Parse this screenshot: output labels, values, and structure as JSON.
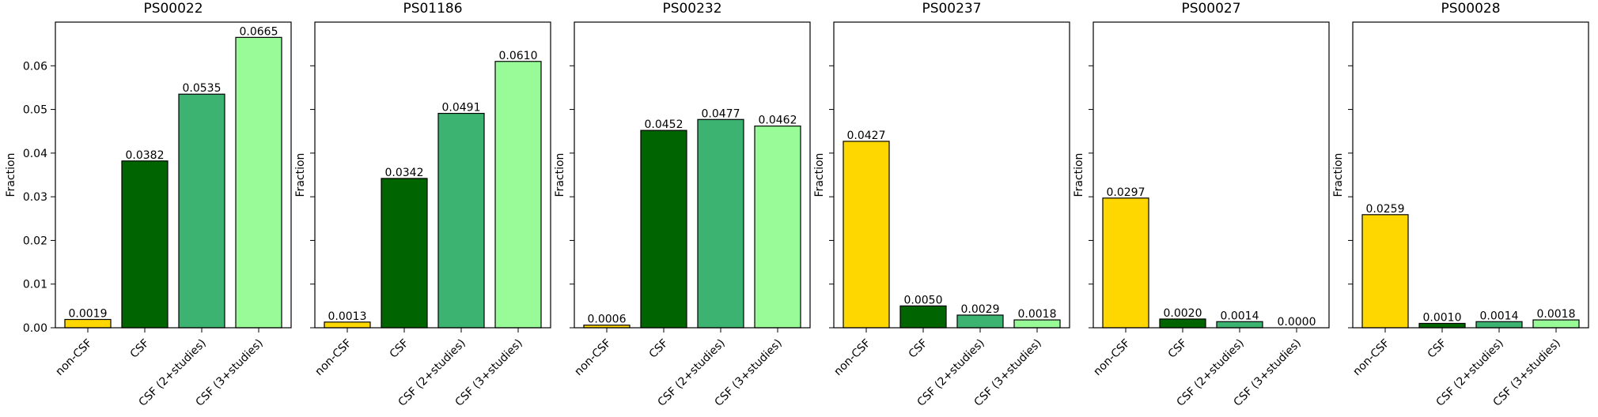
{
  "chart_data": [
    {
      "type": "bar",
      "title": "PS00022",
      "ylabel": "Fraction",
      "categories": [
        "non-CSF",
        "CSF",
        "CSF (2+studies)",
        "CSF (3+studies)"
      ],
      "values": [
        0.0019,
        0.0382,
        0.0535,
        0.0665
      ],
      "value_labels": [
        "0.0019",
        "0.0382",
        "0.0535",
        "0.0665"
      ],
      "ylim": [
        0,
        0.07
      ],
      "yticks": [
        0,
        0.01,
        0.02,
        0.03,
        0.04,
        0.05,
        0.06
      ],
      "ytick_labels": [
        "0.00",
        "0.01",
        "0.02",
        "0.03",
        "0.04",
        "0.05",
        "0.06"
      ]
    },
    {
      "type": "bar",
      "title": "PS01186",
      "ylabel": "Fraction",
      "categories": [
        "non-CSF",
        "CSF",
        "CSF (2+studies)",
        "CSF (3+studies)"
      ],
      "values": [
        0.0013,
        0.0342,
        0.0491,
        0.061
      ],
      "value_labels": [
        "0.0013",
        "0.0342",
        "0.0491",
        "0.0610"
      ],
      "ylim": [
        0,
        0.07
      ],
      "yticks": [
        0,
        0.01,
        0.02,
        0.03,
        0.04,
        0.05,
        0.06
      ],
      "ytick_labels": []
    },
    {
      "type": "bar",
      "title": "PS00232",
      "ylabel": "Fraction",
      "categories": [
        "non-CSF",
        "CSF",
        "CSF (2+studies)",
        "CSF (3+studies)"
      ],
      "values": [
        0.0006,
        0.0452,
        0.0477,
        0.0462
      ],
      "value_labels": [
        "0.0006",
        "0.0452",
        "0.0477",
        "0.0462"
      ],
      "ylim": [
        0,
        0.07
      ],
      "yticks": [
        0,
        0.01,
        0.02,
        0.03,
        0.04,
        0.05,
        0.06
      ],
      "ytick_labels": []
    },
    {
      "type": "bar",
      "title": "PS00237",
      "ylabel": "Fraction",
      "categories": [
        "non-CSF",
        "CSF",
        "CSF (2+studies)",
        "CSF (3+studies)"
      ],
      "values": [
        0.0427,
        0.005,
        0.0029,
        0.0018
      ],
      "value_labels": [
        "0.0427",
        "0.0050",
        "0.0029",
        "0.0018"
      ],
      "ylim": [
        0,
        0.07
      ],
      "yticks": [
        0,
        0.01,
        0.02,
        0.03,
        0.04,
        0.05,
        0.06
      ],
      "ytick_labels": []
    },
    {
      "type": "bar",
      "title": "PS00027",
      "ylabel": "Fraction",
      "categories": [
        "non-CSF",
        "CSF",
        "CSF (2+studies)",
        "CSF (3+studies)"
      ],
      "values": [
        0.0297,
        0.002,
        0.0014,
        0.0
      ],
      "value_labels": [
        "0.0297",
        "0.0020",
        "0.0014",
        "0.0000"
      ],
      "ylim": [
        0,
        0.07
      ],
      "yticks": [
        0,
        0.01,
        0.02,
        0.03,
        0.04,
        0.05,
        0.06
      ],
      "ytick_labels": []
    },
    {
      "type": "bar",
      "title": "PS00028",
      "ylabel": "Fraction",
      "categories": [
        "non-CSF",
        "CSF",
        "CSF (2+studies)",
        "CSF (3+studies)"
      ],
      "values": [
        0.0259,
        0.001,
        0.0014,
        0.0018
      ],
      "value_labels": [
        "0.0259",
        "0.0010",
        "0.0014",
        "0.0018"
      ],
      "ylim": [
        0,
        0.07
      ],
      "yticks": [
        0,
        0.01,
        0.02,
        0.03,
        0.04,
        0.05,
        0.06
      ],
      "ytick_labels": []
    }
  ],
  "colors": {
    "non-CSF": "#ffd700",
    "CSF": "#006400",
    "CSF (2+studies)": "#3cb371",
    "CSF (3+studies)": "#98fb98",
    "bar_edge": "#000000",
    "axis": "#000000"
  }
}
